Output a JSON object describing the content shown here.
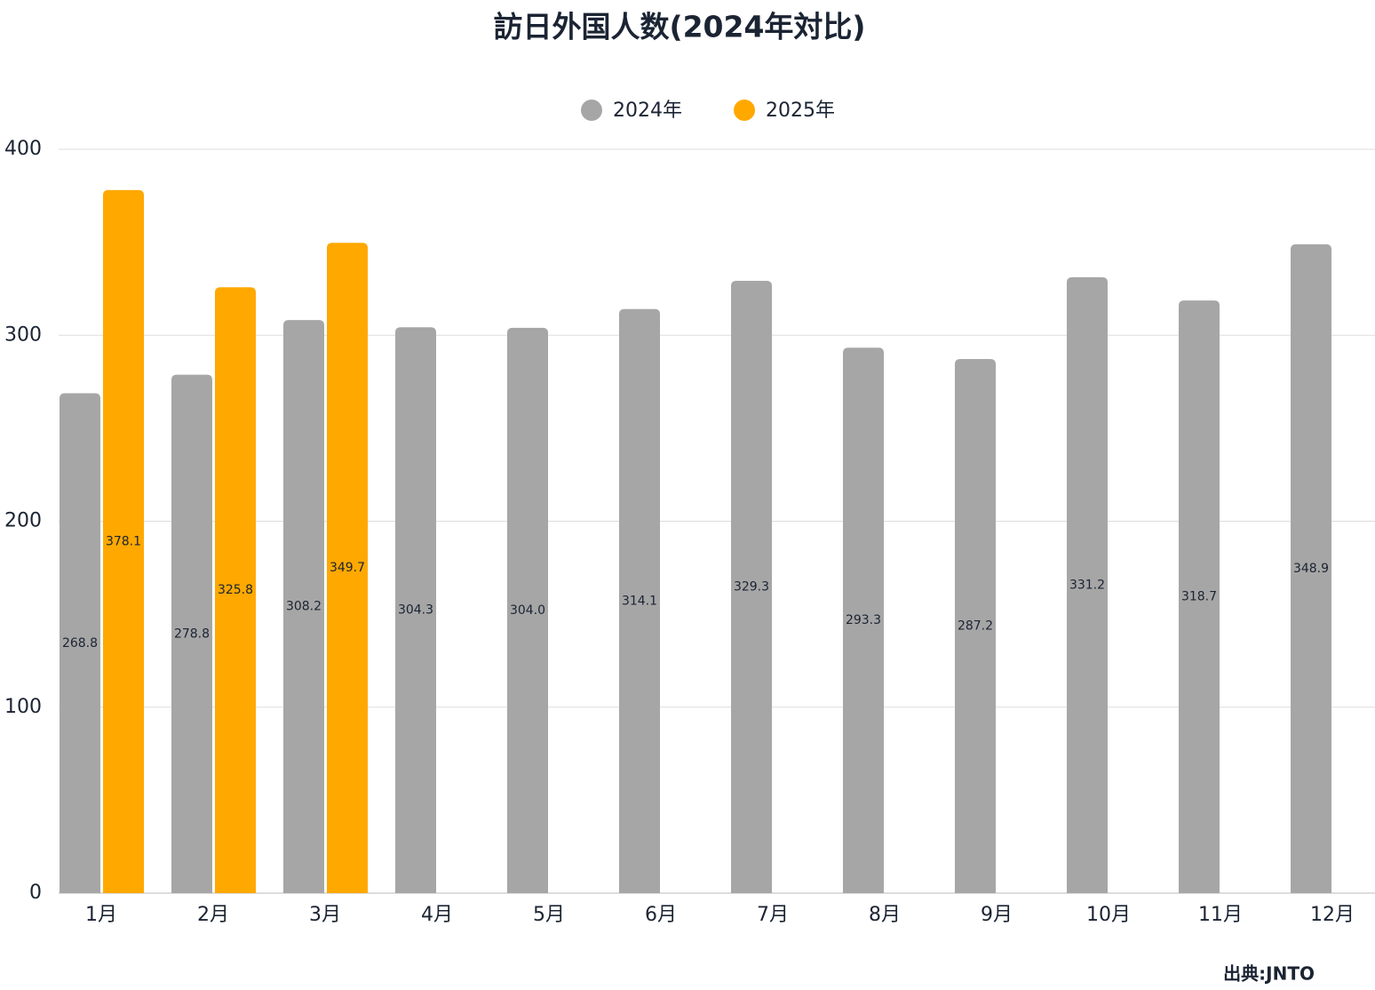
{
  "chart_data": {
    "type": "bar",
    "title": "訪日外国人数(2024年対比)",
    "categories": [
      "1月",
      "2月",
      "3月",
      "4月",
      "5月",
      "6月",
      "7月",
      "8月",
      "9月",
      "10月",
      "11月",
      "12月"
    ],
    "series": [
      {
        "name": "2024年",
        "color": "#a6a6a6",
        "values": [
          268.8,
          278.8,
          308.2,
          304.3,
          304.0,
          314.1,
          329.3,
          293.3,
          287.2,
          331.2,
          318.7,
          348.9
        ],
        "value_labels": [
          "268.8",
          "278.8",
          "308.2",
          "304.3",
          "304.0",
          "314.1",
          "329.3",
          "293.3",
          "287.2",
          "331.2",
          "318.7",
          "348.9"
        ]
      },
      {
        "name": "2025年",
        "color": "#ffa800",
        "values": [
          378.1,
          325.8,
          349.7,
          null,
          null,
          null,
          null,
          null,
          null,
          null,
          null,
          null
        ],
        "value_labels": [
          "378.1",
          "325.8",
          "349.7",
          null,
          null,
          null,
          null,
          null,
          null,
          null,
          null,
          null
        ]
      }
    ],
    "ylim": [
      0,
      400
    ],
    "yticks": [
      0,
      100,
      200,
      300,
      400
    ],
    "grid": true,
    "legend": "top",
    "source": "出典:JNTO"
  }
}
